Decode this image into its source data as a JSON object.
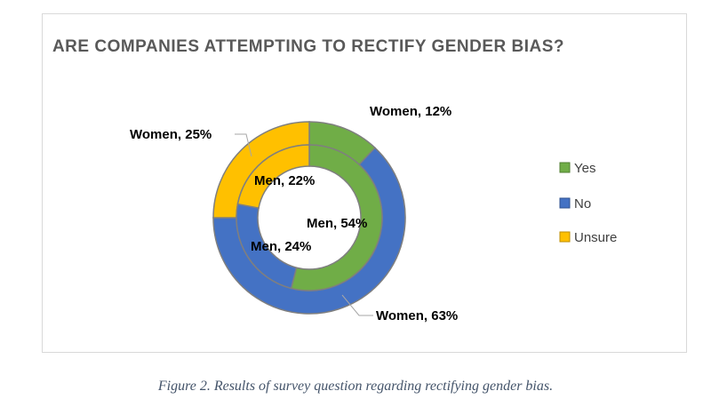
{
  "chart_data": {
    "type": "pie",
    "subtype": "donut",
    "title": "ARE COMPANIES ATTEMPTING TO RECTIFY GENDER BIAS?",
    "categories": [
      "Yes",
      "No",
      "Unsure"
    ],
    "colors": [
      "#70ad47",
      "#4472c4",
      "#ffc000"
    ],
    "series": [
      {
        "name": "Women",
        "ring": "outer",
        "values": [
          12,
          63,
          25
        ]
      },
      {
        "name": "Men",
        "ring": "inner",
        "values": [
          54,
          24,
          22
        ]
      }
    ],
    "data_labels": {
      "outer": [
        "Women, 12%",
        "Women, 63%",
        "Women, 25%"
      ],
      "inner": [
        "Men, 54%",
        "Men, 24%",
        "Men, 22%"
      ]
    },
    "legend": {
      "position": "right",
      "entries": [
        "Yes",
        "No",
        "Unsure"
      ]
    }
  },
  "caption": "Figure 2. Results of survey question regarding rectifying gender bias."
}
